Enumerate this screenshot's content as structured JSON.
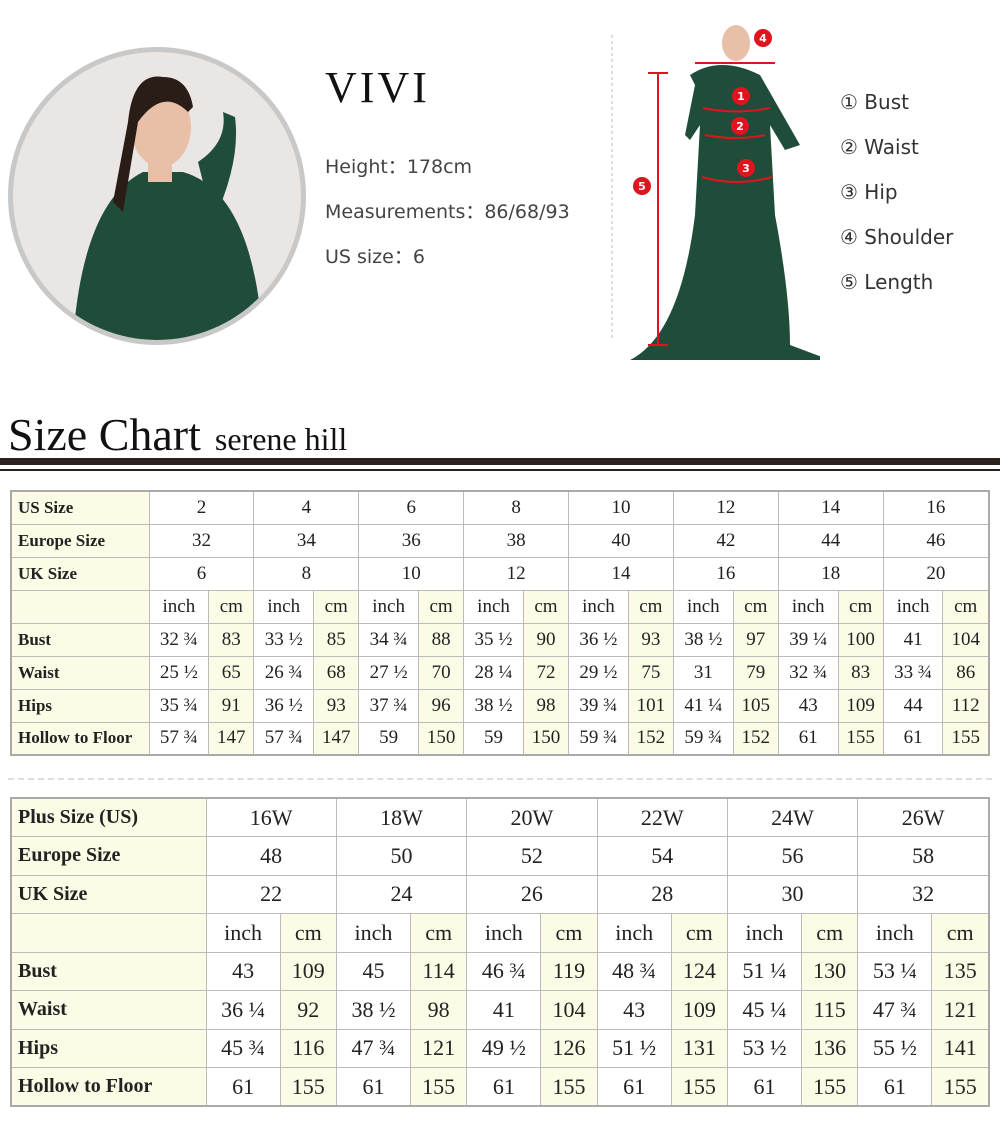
{
  "model": {
    "name": "VIVI",
    "height_label": "Height：",
    "height": "178cm",
    "measurements_label": "Measurements：",
    "measurements": "86/68/93",
    "us_size_label": "US size：",
    "us_size": "6"
  },
  "measure_legend": [
    {
      "num": "①",
      "label": "Bust"
    },
    {
      "num": "②",
      "label": "Waist"
    },
    {
      "num": "③",
      "label": "Hip"
    },
    {
      "num": "④",
      "label": "Shoulder"
    },
    {
      "num": "⑤",
      "label": "Length"
    }
  ],
  "marker_numbers": [
    "1",
    "2",
    "3",
    "4",
    "5"
  ],
  "colors": {
    "marker": "#e0141e",
    "dress": "#1f4d3a",
    "rule": "#2c2220",
    "cell_highlight": "#fcfce6"
  },
  "chart_title": "Size Chart",
  "brand": "serene hill",
  "standard": {
    "size_rows": [
      {
        "label": "US Size",
        "values": [
          "2",
          "4",
          "6",
          "8",
          "10",
          "12",
          "14",
          "16"
        ]
      },
      {
        "label": "Europe Size",
        "values": [
          "32",
          "34",
          "36",
          "38",
          "40",
          "42",
          "44",
          "46"
        ]
      },
      {
        "label": "UK Size",
        "values": [
          "6",
          "8",
          "10",
          "12",
          "14",
          "16",
          "18",
          "20"
        ]
      }
    ],
    "units": [
      "inch",
      "cm"
    ],
    "measure_rows": [
      {
        "label": "Bust",
        "values": [
          "32 ¾",
          "83",
          "33 ½",
          "85",
          "34 ¾",
          "88",
          "35 ½",
          "90",
          "36 ½",
          "93",
          "38 ½",
          "97",
          "39 ¼",
          "100",
          "41",
          "104"
        ]
      },
      {
        "label": "Waist",
        "values": [
          "25 ½",
          "65",
          "26 ¾",
          "68",
          "27 ½",
          "70",
          "28 ¼",
          "72",
          "29 ½",
          "75",
          "31",
          "79",
          "32 ¾",
          "83",
          "33 ¾",
          "86"
        ]
      },
      {
        "label": "Hips",
        "values": [
          "35 ¾",
          "91",
          "36 ½",
          "93",
          "37 ¾",
          "96",
          "38 ½",
          "98",
          "39 ¾",
          "101",
          "41 ¼",
          "105",
          "43",
          "109",
          "44",
          "112"
        ]
      },
      {
        "label": "Hollow to Floor",
        "values": [
          "57 ¾",
          "147",
          "57 ¾",
          "147",
          "59",
          "150",
          "59",
          "150",
          "59 ¾",
          "152",
          "59 ¾",
          "152",
          "61",
          "155",
          "61",
          "155"
        ]
      }
    ]
  },
  "plus": {
    "size_rows": [
      {
        "label": "Plus Size (US)",
        "values": [
          "16W",
          "18W",
          "20W",
          "22W",
          "24W",
          "26W"
        ]
      },
      {
        "label": "Europe Size",
        "values": [
          "48",
          "50",
          "52",
          "54",
          "56",
          "58"
        ]
      },
      {
        "label": "UK Size",
        "values": [
          "22",
          "24",
          "26",
          "28",
          "30",
          "32"
        ]
      }
    ],
    "units": [
      "inch",
      "cm"
    ],
    "measure_rows": [
      {
        "label": "Bust",
        "values": [
          "43",
          "109",
          "45",
          "114",
          "46 ¾",
          "119",
          "48 ¾",
          "124",
          "51 ¼",
          "130",
          "53 ¼",
          "135"
        ]
      },
      {
        "label": "Waist",
        "values": [
          "36 ¼",
          "92",
          "38 ½",
          "98",
          "41",
          "104",
          "43",
          "109",
          "45 ¼",
          "115",
          "47 ¾",
          "121"
        ]
      },
      {
        "label": "Hips",
        "values": [
          "45 ¾",
          "116",
          "47 ¾",
          "121",
          "49 ½",
          "126",
          "51 ½",
          "131",
          "53 ½",
          "136",
          "55 ½",
          "141"
        ]
      },
      {
        "label": "Hollow to Floor",
        "values": [
          "61",
          "155",
          "61",
          "155",
          "61",
          "155",
          "61",
          "155",
          "61",
          "155",
          "61",
          "155"
        ]
      }
    ]
  }
}
